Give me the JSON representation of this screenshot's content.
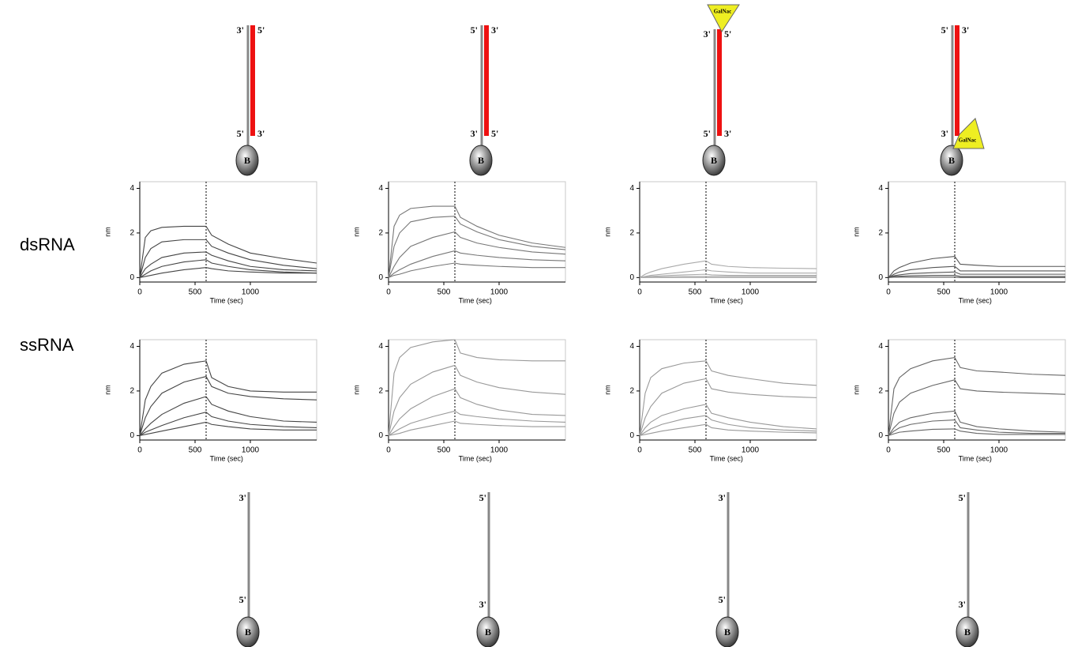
{
  "row_labels": [
    "dsRNA",
    "ssRNA"
  ],
  "diagrams_top": [
    {
      "left_top": "3'",
      "right_top": "5'",
      "left_bottom": "5'",
      "right_bottom": "3'",
      "bead": "B"
    },
    {
      "left_top": "5'",
      "right_top": "3'",
      "left_bottom": "3'",
      "right_bottom": "5'",
      "bead": "B"
    },
    {
      "left_top": "3'",
      "right_top": "5'",
      "left_bottom": "5'",
      "right_bottom": "3'",
      "bead": "B",
      "galnac": "GalNac"
    },
    {
      "left_top": "5'",
      "right_top": "3'",
      "left_bottom": "3'",
      "right_bottom": "",
      "bead": "B",
      "galnac": "GalNac"
    }
  ],
  "diagrams_bottom": [
    {
      "top": "3'",
      "bottom": "5'",
      "bead": "B"
    },
    {
      "top": "5'",
      "bottom": "3'",
      "bead": "B"
    },
    {
      "top": "3'",
      "bottom": "5'",
      "bead": "B"
    },
    {
      "top": "5'",
      "bottom": "3'",
      "bead": "B"
    }
  ],
  "chart_data": [
    {
      "type": "line",
      "xlabel": "Time (sec)",
      "ylabel": "nm",
      "xlim": [
        0,
        1600
      ],
      "ylim": [
        -0.2,
        4.3
      ],
      "xticks": [
        0,
        500,
        1000
      ],
      "yticks": [
        0,
        2,
        4
      ],
      "vline": 600,
      "color": "#444444",
      "x": [
        0,
        50,
        100,
        200,
        400,
        600,
        650,
        800,
        1000,
        1300,
        1600
      ],
      "series": [
        {
          "values": [
            0,
            1.8,
            2.1,
            2.25,
            2.3,
            2.3,
            1.9,
            1.5,
            1.1,
            0.85,
            0.65
          ]
        },
        {
          "values": [
            0,
            0.9,
            1.3,
            1.6,
            1.7,
            1.7,
            1.4,
            1.1,
            0.8,
            0.55,
            0.4
          ]
        },
        {
          "values": [
            0,
            0.4,
            0.6,
            0.9,
            1.1,
            1.15,
            1.0,
            0.75,
            0.5,
            0.35,
            0.3
          ]
        },
        {
          "values": [
            0,
            0.15,
            0.3,
            0.5,
            0.7,
            0.8,
            0.65,
            0.5,
            0.35,
            0.25,
            0.2
          ]
        },
        {
          "values": [
            0,
            0.05,
            0.1,
            0.2,
            0.35,
            0.45,
            0.4,
            0.3,
            0.25,
            0.2,
            0.2
          ]
        }
      ]
    },
    {
      "type": "line",
      "xlabel": "Time (sec)",
      "ylabel": "nm",
      "xlim": [
        0,
        1600
      ],
      "ylim": [
        -0.2,
        4.3
      ],
      "xticks": [
        0,
        500,
        1000
      ],
      "yticks": [
        0,
        2,
        4
      ],
      "vline": 600,
      "color": "#777777",
      "x": [
        0,
        50,
        100,
        200,
        400,
        600,
        650,
        800,
        1000,
        1300,
        1600
      ],
      "series": [
        {
          "values": [
            0,
            2.3,
            2.8,
            3.1,
            3.2,
            3.2,
            2.7,
            2.3,
            1.9,
            1.55,
            1.35
          ]
        },
        {
          "values": [
            0,
            1.4,
            2.0,
            2.5,
            2.7,
            2.75,
            2.4,
            2.05,
            1.7,
            1.4,
            1.25
          ]
        },
        {
          "values": [
            0,
            0.5,
            0.9,
            1.4,
            1.8,
            2.05,
            1.8,
            1.55,
            1.35,
            1.15,
            1.05
          ]
        },
        {
          "values": [
            0,
            0.2,
            0.35,
            0.6,
            0.95,
            1.2,
            1.1,
            1.0,
            0.9,
            0.8,
            0.75
          ]
        },
        {
          "values": [
            0,
            0.1,
            0.15,
            0.3,
            0.5,
            0.65,
            0.6,
            0.55,
            0.5,
            0.45,
            0.45
          ]
        }
      ]
    },
    {
      "type": "line",
      "xlabel": "Time (sec)",
      "ylabel": "nm",
      "xlim": [
        0,
        1600
      ],
      "ylim": [
        -0.2,
        4.3
      ],
      "xticks": [
        0,
        500,
        1000
      ],
      "yticks": [
        0,
        2,
        4
      ],
      "vline": 600,
      "color": "#aaaaaa",
      "x": [
        0,
        50,
        100,
        200,
        400,
        600,
        650,
        800,
        1000,
        1300,
        1600
      ],
      "series": [
        {
          "values": [
            0,
            0.15,
            0.25,
            0.4,
            0.6,
            0.75,
            0.6,
            0.5,
            0.45,
            0.42,
            0.4
          ]
        },
        {
          "values": [
            0,
            0.05,
            0.1,
            0.15,
            0.25,
            0.35,
            0.3,
            0.25,
            0.2,
            0.2,
            0.2
          ]
        },
        {
          "values": [
            0,
            0.02,
            0.05,
            0.08,
            0.12,
            0.15,
            0.12,
            0.1,
            0.1,
            0.1,
            0.1
          ]
        },
        {
          "values": [
            0,
            0,
            0.02,
            0.03,
            0.05,
            0.05,
            0.05,
            0.05,
            0.05,
            0.05,
            0.05
          ]
        },
        {
          "values": [
            0,
            0,
            0,
            0,
            0,
            0,
            0,
            0,
            0,
            0,
            0
          ]
        }
      ]
    },
    {
      "type": "line",
      "xlabel": "Time (sec)",
      "ylabel": "nm",
      "xlim": [
        0,
        1600
      ],
      "ylim": [
        -0.2,
        4.3
      ],
      "xticks": [
        0,
        500,
        1000
      ],
      "yticks": [
        0,
        2,
        4
      ],
      "vline": 600,
      "color": "#555555",
      "x": [
        0,
        50,
        100,
        200,
        400,
        600,
        650,
        800,
        1000,
        1300,
        1600
      ],
      "series": [
        {
          "values": [
            0,
            0.3,
            0.45,
            0.65,
            0.85,
            0.95,
            0.6,
            0.55,
            0.5,
            0.5,
            0.5
          ]
        },
        {
          "values": [
            0,
            0.15,
            0.25,
            0.35,
            0.45,
            0.5,
            0.3,
            0.3,
            0.3,
            0.3,
            0.3
          ]
        },
        {
          "values": [
            0,
            0.08,
            0.12,
            0.18,
            0.22,
            0.25,
            0.15,
            0.15,
            0.15,
            0.15,
            0.15
          ]
        },
        {
          "values": [
            0,
            0.04,
            0.06,
            0.08,
            0.1,
            0.1,
            0.05,
            0.05,
            0.05,
            0.05,
            0.05
          ]
        },
        {
          "values": [
            0,
            0.02,
            0.02,
            0.02,
            0.02,
            0.02,
            0,
            0,
            0,
            0,
            0
          ]
        }
      ]
    },
    {
      "type": "line",
      "xlabel": "Time (sec)",
      "ylabel": "nm",
      "xlim": [
        0,
        1600
      ],
      "ylim": [
        -0.2,
        4.3
      ],
      "xticks": [
        0,
        500,
        1000
      ],
      "yticks": [
        0,
        2,
        4
      ],
      "vline": 600,
      "color": "#444444",
      "x": [
        0,
        50,
        100,
        200,
        400,
        600,
        650,
        800,
        1000,
        1300,
        1600
      ],
      "series": [
        {
          "values": [
            0,
            1.6,
            2.2,
            2.8,
            3.2,
            3.35,
            2.6,
            2.2,
            2.0,
            1.95,
            1.95
          ]
        },
        {
          "values": [
            0,
            0.8,
            1.3,
            1.9,
            2.4,
            2.65,
            2.2,
            1.9,
            1.75,
            1.65,
            1.6
          ]
        },
        {
          "values": [
            0,
            0.3,
            0.55,
            0.95,
            1.45,
            1.75,
            1.4,
            1.1,
            0.85,
            0.65,
            0.6
          ]
        },
        {
          "values": [
            0,
            0.15,
            0.25,
            0.45,
            0.8,
            1.05,
            0.85,
            0.65,
            0.5,
            0.4,
            0.35
          ]
        },
        {
          "values": [
            0,
            0.05,
            0.1,
            0.2,
            0.4,
            0.6,
            0.5,
            0.4,
            0.3,
            0.25,
            0.25
          ]
        }
      ]
    },
    {
      "type": "line",
      "xlabel": "Time (sec)",
      "ylabel": "nm",
      "xlim": [
        0,
        1600
      ],
      "ylim": [
        -0.2,
        4.3
      ],
      "xticks": [
        0,
        500,
        1000
      ],
      "yticks": [
        0,
        2,
        4
      ],
      "vline": 600,
      "color": "#999999",
      "x": [
        0,
        50,
        100,
        200,
        400,
        600,
        650,
        800,
        1000,
        1300,
        1600
      ],
      "series": [
        {
          "values": [
            0,
            2.8,
            3.5,
            3.95,
            4.2,
            4.3,
            3.7,
            3.5,
            3.4,
            3.35,
            3.35
          ]
        },
        {
          "values": [
            0,
            1.1,
            1.7,
            2.3,
            2.85,
            3.15,
            2.7,
            2.4,
            2.15,
            1.95,
            1.85
          ]
        },
        {
          "values": [
            0,
            0.4,
            0.75,
            1.2,
            1.75,
            2.1,
            1.7,
            1.4,
            1.15,
            0.95,
            0.9
          ]
        },
        {
          "values": [
            0,
            0.15,
            0.3,
            0.55,
            0.85,
            1.1,
            0.95,
            0.85,
            0.75,
            0.65,
            0.6
          ]
        },
        {
          "values": [
            0,
            0.05,
            0.1,
            0.25,
            0.45,
            0.65,
            0.55,
            0.5,
            0.45,
            0.4,
            0.4
          ]
        }
      ]
    },
    {
      "type": "line",
      "xlabel": "Time (sec)",
      "ylabel": "nm",
      "xlim": [
        0,
        1600
      ],
      "ylim": [
        -0.2,
        4.3
      ],
      "xticks": [
        0,
        500,
        1000
      ],
      "yticks": [
        0,
        2,
        4
      ],
      "vline": 600,
      "color": "#999999",
      "x": [
        0,
        50,
        100,
        200,
        400,
        600,
        650,
        800,
        1000,
        1300,
        1600
      ],
      "series": [
        {
          "values": [
            0,
            1.9,
            2.6,
            3.0,
            3.25,
            3.35,
            2.9,
            2.7,
            2.55,
            2.35,
            2.25
          ]
        },
        {
          "values": [
            0,
            0.8,
            1.3,
            1.9,
            2.35,
            2.55,
            2.1,
            1.95,
            1.85,
            1.75,
            1.7
          ]
        },
        {
          "values": [
            0,
            0.35,
            0.6,
            0.9,
            1.2,
            1.4,
            1.0,
            0.8,
            0.6,
            0.4,
            0.3
          ]
        },
        {
          "values": [
            0,
            0.15,
            0.3,
            0.5,
            0.75,
            0.9,
            0.7,
            0.5,
            0.35,
            0.25,
            0.2
          ]
        },
        {
          "values": [
            0,
            0.05,
            0.1,
            0.2,
            0.35,
            0.5,
            0.35,
            0.25,
            0.2,
            0.15,
            0.12
          ]
        }
      ]
    },
    {
      "type": "line",
      "xlabel": "Time (sec)",
      "ylabel": "nm",
      "xlim": [
        0,
        1600
      ],
      "ylim": [
        -0.2,
        4.3
      ],
      "xticks": [
        0,
        500,
        1000
      ],
      "yticks": [
        0,
        2,
        4
      ],
      "vline": 600,
      "color": "#666666",
      "x": [
        0,
        50,
        100,
        200,
        400,
        600,
        650,
        800,
        1000,
        1300,
        1600
      ],
      "series": [
        {
          "values": [
            0,
            2.1,
            2.6,
            3.0,
            3.35,
            3.5,
            3.05,
            2.9,
            2.85,
            2.75,
            2.7
          ]
        },
        {
          "values": [
            0,
            1.0,
            1.5,
            1.9,
            2.25,
            2.5,
            2.1,
            2.0,
            1.95,
            1.9,
            1.85
          ]
        },
        {
          "values": [
            0,
            0.35,
            0.6,
            0.8,
            1.0,
            1.1,
            0.6,
            0.4,
            0.3,
            0.2,
            0.15
          ]
        },
        {
          "values": [
            0,
            0.2,
            0.35,
            0.5,
            0.65,
            0.7,
            0.35,
            0.25,
            0.15,
            0.1,
            0.1
          ]
        },
        {
          "values": [
            0,
            0.08,
            0.15,
            0.2,
            0.28,
            0.3,
            0.2,
            0.1,
            0.05,
            0.05,
            0.05
          ]
        }
      ]
    }
  ]
}
